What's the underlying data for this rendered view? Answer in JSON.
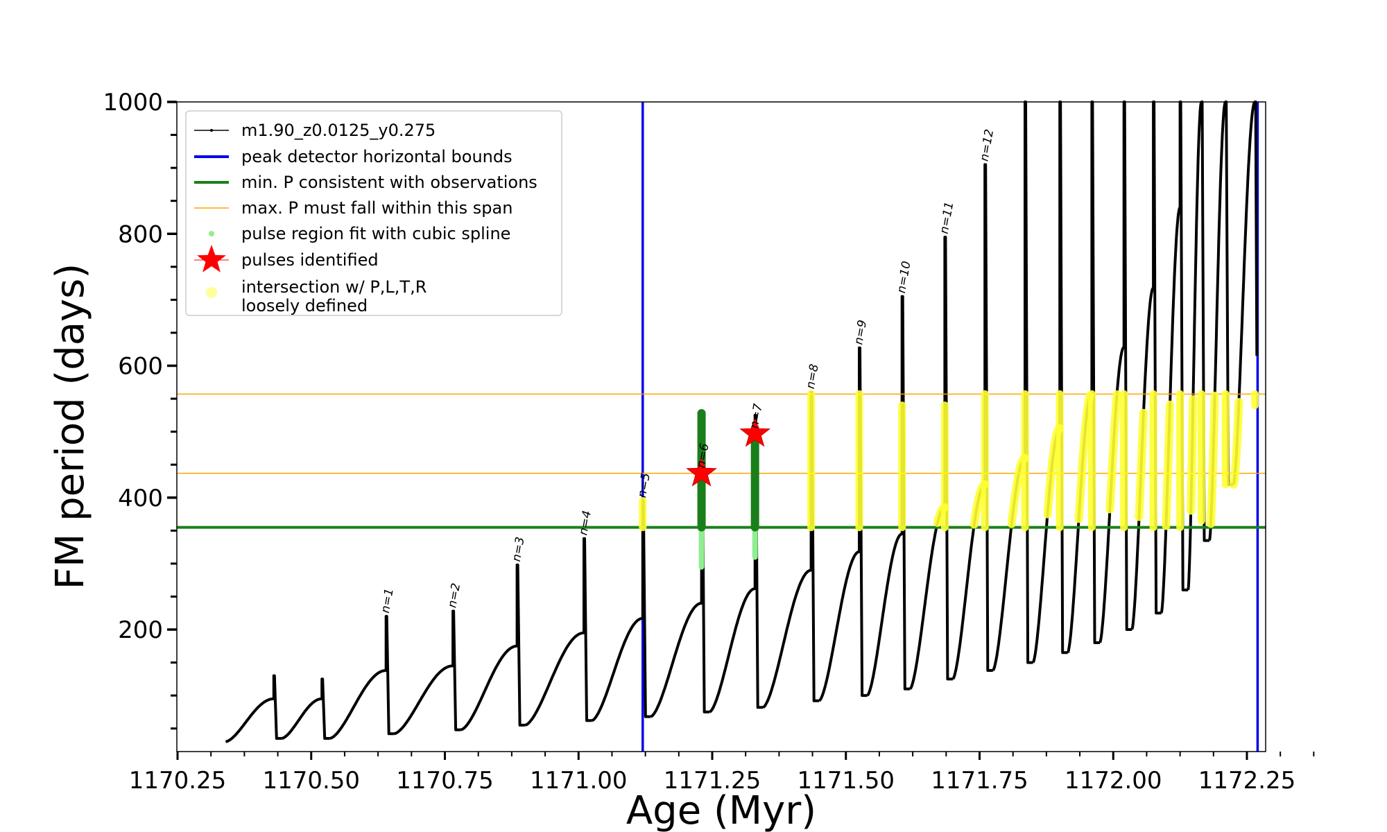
{
  "chart_data": {
    "type": "line",
    "xlabel": "Age (Myr)",
    "ylabel": "FM period (days)",
    "xlim": [
      1170.25,
      1172.4
    ],
    "ylim": [
      15,
      1000
    ],
    "x_ticks": [
      1170.25,
      1170.5,
      1170.75,
      1171.0,
      1171.25,
      1171.5,
      1171.75,
      1172.0,
      1172.25
    ],
    "x_tick_labels": [
      "1170.25",
      "1170.50",
      "1170.75",
      "1171.00",
      "1171.25",
      "1171.50",
      "1171.75",
      "1172.00",
      "1172.25"
    ],
    "y_ticks": [
      200,
      400,
      600,
      800,
      1000
    ],
    "y_tick_labels": [
      "200",
      "400",
      "600",
      "800",
      "1000"
    ],
    "legend_position": "upper-left",
    "legend": [
      {
        "label": "m1.90_z0.0125_y0.275",
        "kind": "line-dot",
        "color": "#000000"
      },
      {
        "label": "peak detector horizontal bounds",
        "kind": "line",
        "color": "#0000ee"
      },
      {
        "label": "min. P consistent with observations",
        "kind": "line",
        "color": "#1a7f1a"
      },
      {
        "label": "max. P must fall within this span",
        "kind": "thin-line",
        "color": "#ffa500"
      },
      {
        "label": "pulse region fit with cubic spline",
        "kind": "dot",
        "color": "#90ee90"
      },
      {
        "label": "pulses identified",
        "kind": "star",
        "color": "#ff0000"
      },
      {
        "label": "intersection w/ P,L,T,R\nloosely defined",
        "kind": "circle",
        "color": "#ffff99"
      }
    ],
    "vertical_bounds": [
      1171.12,
      1172.27
    ],
    "min_period": 355,
    "max_period_span": [
      437,
      557
    ],
    "series_track": {
      "name": "m1.90_z0.0125_y0.275",
      "color": "#000000",
      "cycles": [
        {
          "start_x": 1170.34,
          "start_y": 30,
          "peak_x": 1170.43,
          "peak_y": 95,
          "spike_y": 130,
          "min_y": 35
        },
        {
          "start_x": 1170.445,
          "start_y": 35,
          "peak_x": 1170.52,
          "peak_y": 95,
          "spike_y": 125,
          "min_y": 35
        },
        {
          "start_x": 1170.535,
          "start_y": 35,
          "peak_x": 1170.64,
          "peak_y": 138,
          "spike_y": 220,
          "min_y": 42
        },
        {
          "start_x": 1170.655,
          "start_y": 42,
          "peak_x": 1170.765,
          "peak_y": 145,
          "spike_y": 228,
          "min_y": 48
        },
        {
          "start_x": 1170.78,
          "start_y": 48,
          "peak_x": 1170.885,
          "peak_y": 175,
          "spike_y": 298,
          "min_y": 55
        },
        {
          "start_x": 1170.9,
          "start_y": 55,
          "peak_x": 1171.01,
          "peak_y": 195,
          "spike_y": 338,
          "min_y": 62
        },
        {
          "start_x": 1171.025,
          "start_y": 62,
          "peak_x": 1171.12,
          "peak_y": 217,
          "spike_y": 395,
          "min_y": 68
        },
        {
          "start_x": 1171.135,
          "start_y": 68,
          "peak_x": 1171.23,
          "peak_y": 240,
          "spike_y": 500,
          "min_y": 75
        },
        {
          "start_x": 1171.245,
          "start_y": 75,
          "peak_x": 1171.33,
          "peak_y": 262,
          "spike_y": 525,
          "min_y": 82
        },
        {
          "start_x": 1171.345,
          "start_y": 82,
          "peak_x": 1171.435,
          "peak_y": 290,
          "spike_y": 560,
          "min_y": 92
        },
        {
          "start_x": 1171.45,
          "start_y": 92,
          "peak_x": 1171.525,
          "peak_y": 318,
          "spike_y": 627,
          "min_y": 100
        },
        {
          "start_x": 1171.54,
          "start_y": 100,
          "peak_x": 1171.605,
          "peak_y": 345,
          "spike_y": 705,
          "min_y": 110
        },
        {
          "start_x": 1171.62,
          "start_y": 110,
          "peak_x": 1171.685,
          "peak_y": 385,
          "spike_y": 795,
          "min_y": 125
        },
        {
          "start_x": 1171.7,
          "start_y": 125,
          "peak_x": 1171.76,
          "peak_y": 420,
          "spike_y": 905,
          "min_y": 138
        },
        {
          "start_x": 1171.775,
          "start_y": 138,
          "peak_x": 1171.835,
          "peak_y": 460,
          "spike_y": 1000,
          "min_y": 150
        },
        {
          "start_x": 1171.85,
          "start_y": 150,
          "peak_x": 1171.9,
          "peak_y": 505,
          "spike_y": 1000,
          "min_y": 165
        },
        {
          "start_x": 1171.915,
          "start_y": 165,
          "peak_x": 1171.96,
          "peak_y": 560,
          "spike_y": 1000,
          "min_y": 180
        },
        {
          "start_x": 1171.975,
          "start_y": 180,
          "peak_x": 1172.02,
          "peak_y": 628,
          "spike_y": 1000,
          "min_y": 200
        },
        {
          "start_x": 1172.035,
          "start_y": 200,
          "peak_x": 1172.075,
          "peak_y": 718,
          "spike_y": 1000,
          "min_y": 225
        },
        {
          "start_x": 1172.09,
          "start_y": 225,
          "peak_x": 1172.125,
          "peak_y": 840,
          "spike_y": 1000,
          "min_y": 260
        },
        {
          "start_x": 1172.14,
          "start_y": 260,
          "peak_x": 1172.165,
          "peak_y": 1000,
          "spike_y": 1000,
          "min_y": 335
        },
        {
          "start_x": 1172.18,
          "start_y": 335,
          "peak_x": 1172.21,
          "peak_y": 1000,
          "spike_y": 1000,
          "min_y": 420
        },
        {
          "start_x": 1172.225,
          "start_y": 420,
          "peak_x": 1172.265,
          "peak_y": 1000,
          "spike_y": 1000,
          "min_y": 615
        }
      ]
    },
    "pulse_labels": [
      {
        "label": "n=1",
        "x": 1170.64,
        "y": 220
      },
      {
        "label": "n=2",
        "x": 1170.765,
        "y": 228
      },
      {
        "label": "n=3",
        "x": 1170.885,
        "y": 298
      },
      {
        "label": "n=4",
        "x": 1171.01,
        "y": 338
      },
      {
        "label": "n=5",
        "x": 1171.12,
        "y": 395
      },
      {
        "label": "n=6",
        "x": 1171.23,
        "y": 440
      },
      {
        "label": "n=7",
        "x": 1171.33,
        "y": 500
      },
      {
        "label": "n=8",
        "x": 1171.435,
        "y": 560
      },
      {
        "label": "n=9",
        "x": 1171.525,
        "y": 627
      },
      {
        "label": "n=10",
        "x": 1171.605,
        "y": 705
      },
      {
        "label": "n=11",
        "x": 1171.685,
        "y": 795
      },
      {
        "label": "n=12",
        "x": 1171.76,
        "y": 905
      }
    ],
    "pulses_identified": [
      {
        "x": 1171.23,
        "y": 437
      },
      {
        "x": 1171.33,
        "y": 497
      }
    ],
    "spline_regions": [
      {
        "x": 1171.23,
        "y_min": 295,
        "y_max": 528
      },
      {
        "x": 1171.33,
        "y_min": 310,
        "y_max": 505
      }
    ],
    "yellow_spikes": [
      {
        "x": 1171.12,
        "y_min": 355,
        "y_max": 395
      },
      {
        "x": 1171.435,
        "y_min": 355,
        "y_max": 557
      },
      {
        "x": 1171.525,
        "y_min": 355,
        "y_max": 557
      },
      {
        "x": 1171.605,
        "y_min": 355,
        "y_max": 540
      },
      {
        "x": 1171.685,
        "y_min": 355,
        "y_max": 540
      },
      {
        "x": 1171.76,
        "y_min": 355,
        "y_max": 557
      },
      {
        "x": 1171.835,
        "y_min": 355,
        "y_max": 557
      },
      {
        "x": 1171.9,
        "y_min": 355,
        "y_max": 557
      },
      {
        "x": 1171.96,
        "y_min": 355,
        "y_max": 557
      },
      {
        "x": 1172.02,
        "y_min": 355,
        "y_max": 557
      },
      {
        "x": 1172.075,
        "y_min": 355,
        "y_max": 557
      },
      {
        "x": 1172.125,
        "y_min": 355,
        "y_max": 557
      },
      {
        "x": 1172.165,
        "y_min": 365,
        "y_max": 557
      },
      {
        "x": 1172.21,
        "y_min": 420,
        "y_max": 557
      },
      {
        "x": 1172.265,
        "y_min": 540,
        "y_max": 557
      }
    ]
  }
}
